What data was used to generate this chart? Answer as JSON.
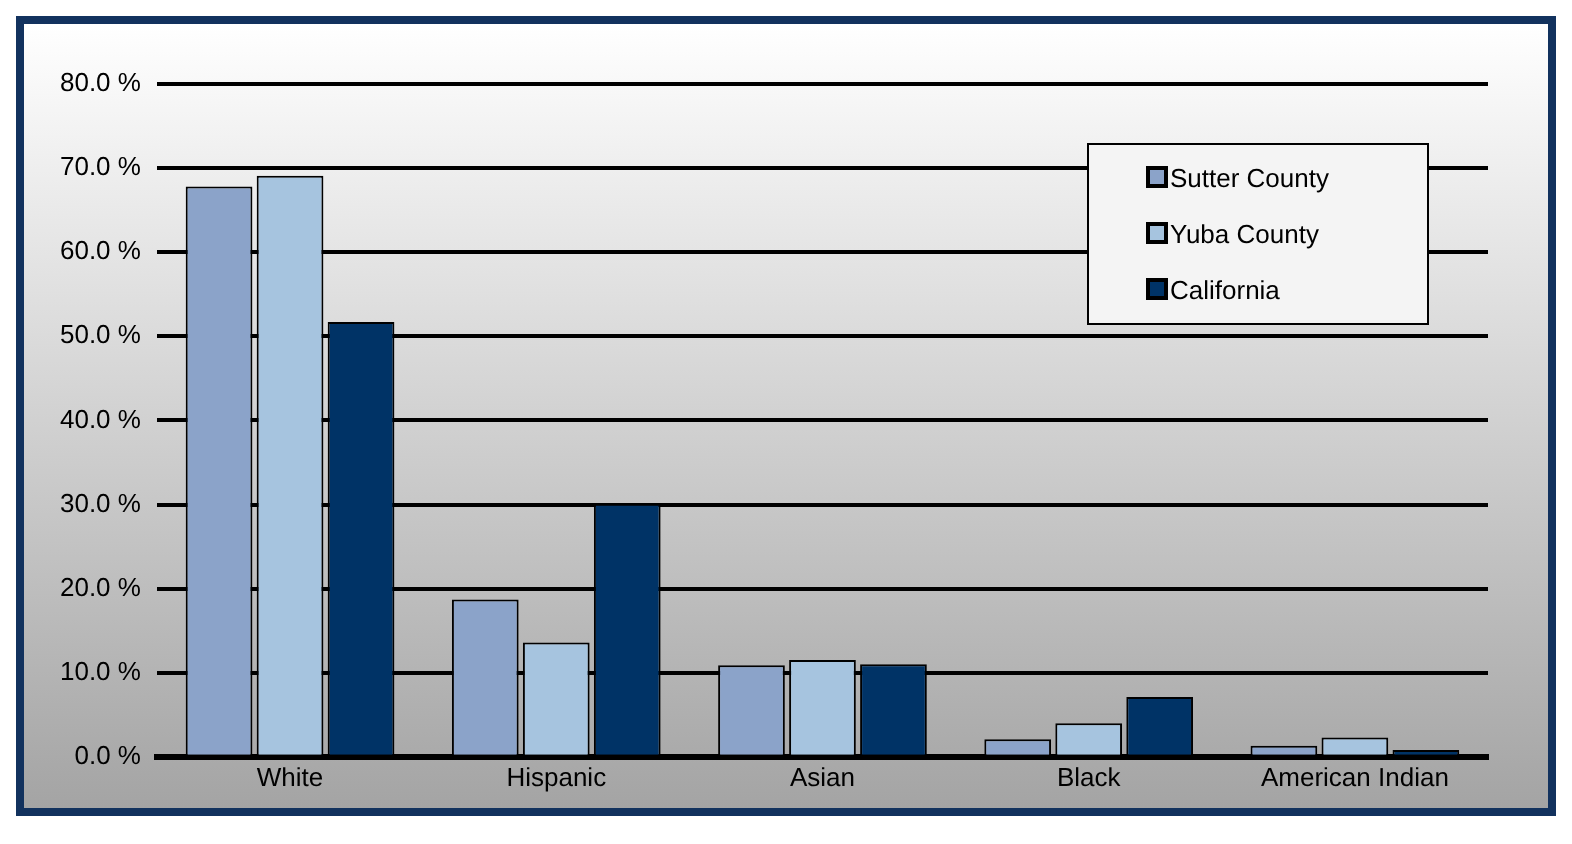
{
  "chart_data": {
    "type": "bar",
    "categories": [
      "White",
      "Hispanic",
      "Asian",
      "Black",
      "American Indian"
    ],
    "series": [
      {
        "name": "Sutter County",
        "color": "#8ba3c9",
        "values": [
          67.8,
          18.7,
          10.9,
          2.1,
          1.3
        ]
      },
      {
        "name": "Yuba County",
        "color": "#a6c4df",
        "values": [
          69.1,
          13.6,
          11.5,
          4.0,
          2.3
        ]
      },
      {
        "name": "California",
        "color": "#003366",
        "values": [
          51.7,
          30.1,
          11.0,
          7.1,
          0.8
        ]
      }
    ],
    "ylim": [
      0,
      80
    ],
    "yticks": [
      {
        "value": 0,
        "label": "0.0 %"
      },
      {
        "value": 10,
        "label": "10.0 %"
      },
      {
        "value": 20,
        "label": "20.0 %"
      },
      {
        "value": 30,
        "label": "30.0 %"
      },
      {
        "value": 40,
        "label": "40.0 %"
      },
      {
        "value": 50,
        "label": "50.0 %"
      },
      {
        "value": 60,
        "label": "60.0 %"
      },
      {
        "value": 70,
        "label": "70.0 %"
      },
      {
        "value": 80,
        "label": "80.0 %"
      }
    ],
    "grid": "y",
    "legend": "top right"
  }
}
